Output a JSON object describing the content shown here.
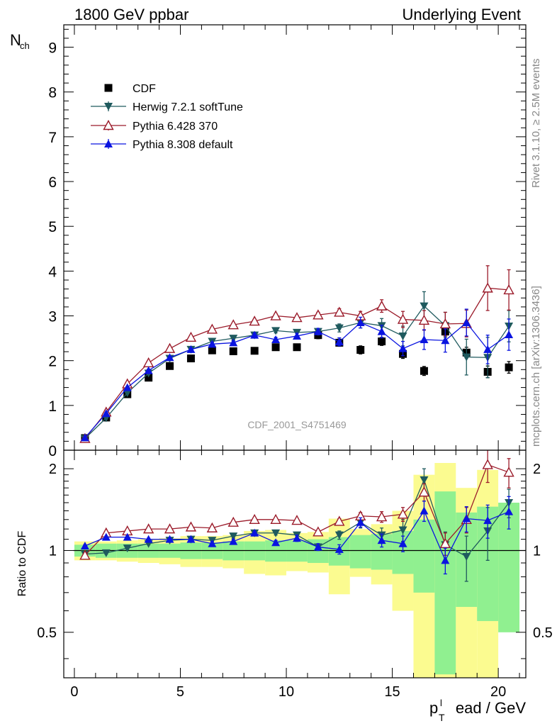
{
  "header": {
    "left": "1800 GeV ppbar",
    "right": "Underlying Event"
  },
  "side": {
    "rivet": "Rivet 3.1.10, ≥ 2.5M events",
    "mcplots": "mcplots.cern.ch [arXiv:1306.3436]"
  },
  "colors": {
    "cdf": "#000000",
    "herwig": "#1f5a5e",
    "pythia6": "#9b1b2a",
    "pythia8": "#0a14e0",
    "band_green": "#90f090",
    "band_yellow": "#fbfb90"
  },
  "chart_data": [
    {
      "type": "scatter",
      "panel": "main",
      "ylabel_main": "N",
      "ylabel_sub": "ch",
      "watermark": "CDF_2001_S4751469",
      "xlim": [
        -0.5,
        21.3
      ],
      "ylim": [
        0,
        9.5
      ],
      "yticks": [
        0,
        1,
        2,
        3,
        4,
        5,
        6,
        7,
        8,
        9
      ],
      "legend": [
        {
          "label": "CDF",
          "series": "cdf",
          "marker": "square"
        },
        {
          "label": "Herwig 7.2.1 softTune",
          "series": "herwig",
          "marker": "triangle-down"
        },
        {
          "label": "Pythia 6.428 370",
          "series": "pythia6",
          "marker": "triangle-open"
        },
        {
          "label": "Pythia 8.308 default",
          "series": "pythia8",
          "marker": "triangle-up"
        }
      ],
      "x": [
        0.5,
        1.5,
        2.5,
        3.5,
        4.5,
        5.5,
        6.5,
        7.5,
        8.5,
        9.5,
        10.5,
        11.5,
        12.5,
        13.5,
        14.5,
        15.5,
        16.5,
        17.5,
        18.5,
        19.5,
        20.5
      ],
      "series": [
        {
          "name": "CDF",
          "key": "cdf",
          "values": [
            0.27,
            0.73,
            1.25,
            1.62,
            1.88,
            2.05,
            2.23,
            2.21,
            2.22,
            2.3,
            2.3,
            2.57,
            2.4,
            2.24,
            2.43,
            2.15,
            1.77,
            2.65,
            2.18,
            1.75,
            1.85
          ],
          "err": [
            0.02,
            0.04,
            0.05,
            0.05,
            0.05,
            0.06,
            0.06,
            0.06,
            0.07,
            0.07,
            0.07,
            0.08,
            0.08,
            0.09,
            0.09,
            0.1,
            0.1,
            0.12,
            0.12,
            0.13,
            0.13
          ]
        },
        {
          "name": "Herwig 7.2.1 softTune",
          "key": "herwig",
          "values": [
            0.26,
            0.72,
            1.28,
            1.72,
            2.05,
            2.25,
            2.43,
            2.5,
            2.57,
            2.67,
            2.63,
            2.65,
            2.73,
            2.85,
            2.78,
            2.55,
            3.22,
            2.78,
            2.08,
            2.07,
            2.77
          ],
          "err": [
            0.01,
            0.02,
            0.02,
            0.03,
            0.03,
            0.03,
            0.04,
            0.04,
            0.05,
            0.05,
            0.06,
            0.07,
            0.09,
            0.12,
            0.16,
            0.22,
            0.32,
            0.3,
            0.4,
            0.45,
            0.35
          ]
        },
        {
          "name": "Pythia 6.428 370",
          "key": "pythia6",
          "values": [
            0.26,
            0.85,
            1.48,
            1.95,
            2.27,
            2.52,
            2.7,
            2.8,
            2.88,
            3.0,
            2.96,
            3.02,
            3.08,
            3.0,
            3.22,
            2.92,
            2.9,
            2.82,
            2.83,
            3.62,
            3.58
          ],
          "err": [
            0.01,
            0.02,
            0.02,
            0.03,
            0.03,
            0.03,
            0.04,
            0.04,
            0.04,
            0.05,
            0.05,
            0.06,
            0.08,
            0.1,
            0.14,
            0.18,
            0.22,
            0.26,
            0.3,
            0.5,
            0.45
          ]
        },
        {
          "name": "Pythia 8.308 default",
          "key": "pythia8",
          "values": [
            0.28,
            0.82,
            1.4,
            1.78,
            2.07,
            2.25,
            2.37,
            2.4,
            2.57,
            2.47,
            2.55,
            2.65,
            2.42,
            2.85,
            2.65,
            2.27,
            2.47,
            2.45,
            2.85,
            2.25,
            2.58
          ],
          "err": [
            0.01,
            0.02,
            0.02,
            0.03,
            0.03,
            0.03,
            0.04,
            0.04,
            0.05,
            0.05,
            0.06,
            0.07,
            0.09,
            0.12,
            0.14,
            0.16,
            0.22,
            0.26,
            0.3,
            0.32,
            0.35
          ]
        }
      ]
    },
    {
      "type": "scatter",
      "panel": "ratio",
      "ylabel": "Ratio to CDF",
      "xlabel_main": "p",
      "xlabel_sub": "T",
      "xlabel_sup": "l",
      "xlabel_rest": "ead / GeV",
      "xlim": [
        -0.5,
        21.3
      ],
      "ylim": [
        0.34,
        2.34
      ],
      "yticks": [
        0.5,
        1,
        2
      ],
      "xticks": [
        0,
        5,
        10,
        15,
        20
      ],
      "x": [
        0.5,
        1.5,
        2.5,
        3.5,
        4.5,
        5.5,
        6.5,
        7.5,
        8.5,
        9.5,
        10.5,
        11.5,
        12.5,
        13.5,
        14.5,
        15.5,
        16.5,
        17.5,
        18.5,
        19.5,
        20.5
      ],
      "band_green": [
        0.05,
        0.06,
        0.06,
        0.06,
        0.06,
        0.07,
        0.07,
        0.08,
        0.08,
        0.09,
        0.09,
        0.1,
        0.12,
        0.14,
        0.15,
        0.18,
        0.3,
        0.65,
        0.38,
        0.45,
        0.5
      ],
      "band_yellow": [
        0.08,
        0.08,
        0.09,
        0.1,
        0.11,
        0.13,
        0.13,
        0.14,
        0.18,
        0.19,
        0.16,
        0.17,
        0.31,
        0.2,
        0.25,
        0.4,
        0.9,
        1.1,
        0.7,
        0.98,
        0.45
      ],
      "series": [
        {
          "name": "Herwig 7.2.1 softTune",
          "key": "herwig",
          "values": [
            0.97,
            0.98,
            1.02,
            1.06,
            1.09,
            1.1,
            1.09,
            1.13,
            1.16,
            1.16,
            1.14,
            1.03,
            1.14,
            1.27,
            1.14,
            1.19,
            1.82,
            1.05,
            0.95,
            1.18,
            1.5
          ],
          "err": [
            0.01,
            0.01,
            0.01,
            0.01,
            0.01,
            0.02,
            0.02,
            0.02,
            0.02,
            0.02,
            0.02,
            0.02,
            0.04,
            0.06,
            0.07,
            0.11,
            0.18,
            0.12,
            0.18,
            0.26,
            0.18
          ]
        },
        {
          "name": "Pythia 6.428 370",
          "key": "pythia6",
          "values": [
            0.96,
            1.16,
            1.18,
            1.2,
            1.2,
            1.22,
            1.21,
            1.27,
            1.3,
            1.3,
            1.29,
            1.17,
            1.28,
            1.34,
            1.33,
            1.36,
            1.64,
            1.06,
            1.3,
            2.07,
            1.94
          ],
          "err": [
            0.01,
            0.01,
            0.01,
            0.01,
            0.01,
            0.01,
            0.02,
            0.02,
            0.02,
            0.02,
            0.02,
            0.02,
            0.03,
            0.04,
            0.06,
            0.08,
            0.12,
            0.1,
            0.14,
            0.29,
            0.24
          ]
        },
        {
          "name": "Pythia 8.308 default",
          "key": "pythia8",
          "values": [
            1.04,
            1.12,
            1.12,
            1.1,
            1.1,
            1.1,
            1.06,
            1.08,
            1.16,
            1.07,
            1.11,
            1.03,
            1.01,
            1.27,
            1.09,
            1.06,
            1.4,
            0.92,
            1.31,
            1.29,
            1.39
          ],
          "err": [
            0.01,
            0.01,
            0.01,
            0.01,
            0.01,
            0.01,
            0.02,
            0.02,
            0.02,
            0.02,
            0.03,
            0.03,
            0.04,
            0.05,
            0.06,
            0.07,
            0.12,
            0.1,
            0.14,
            0.18,
            0.19
          ]
        }
      ]
    }
  ]
}
